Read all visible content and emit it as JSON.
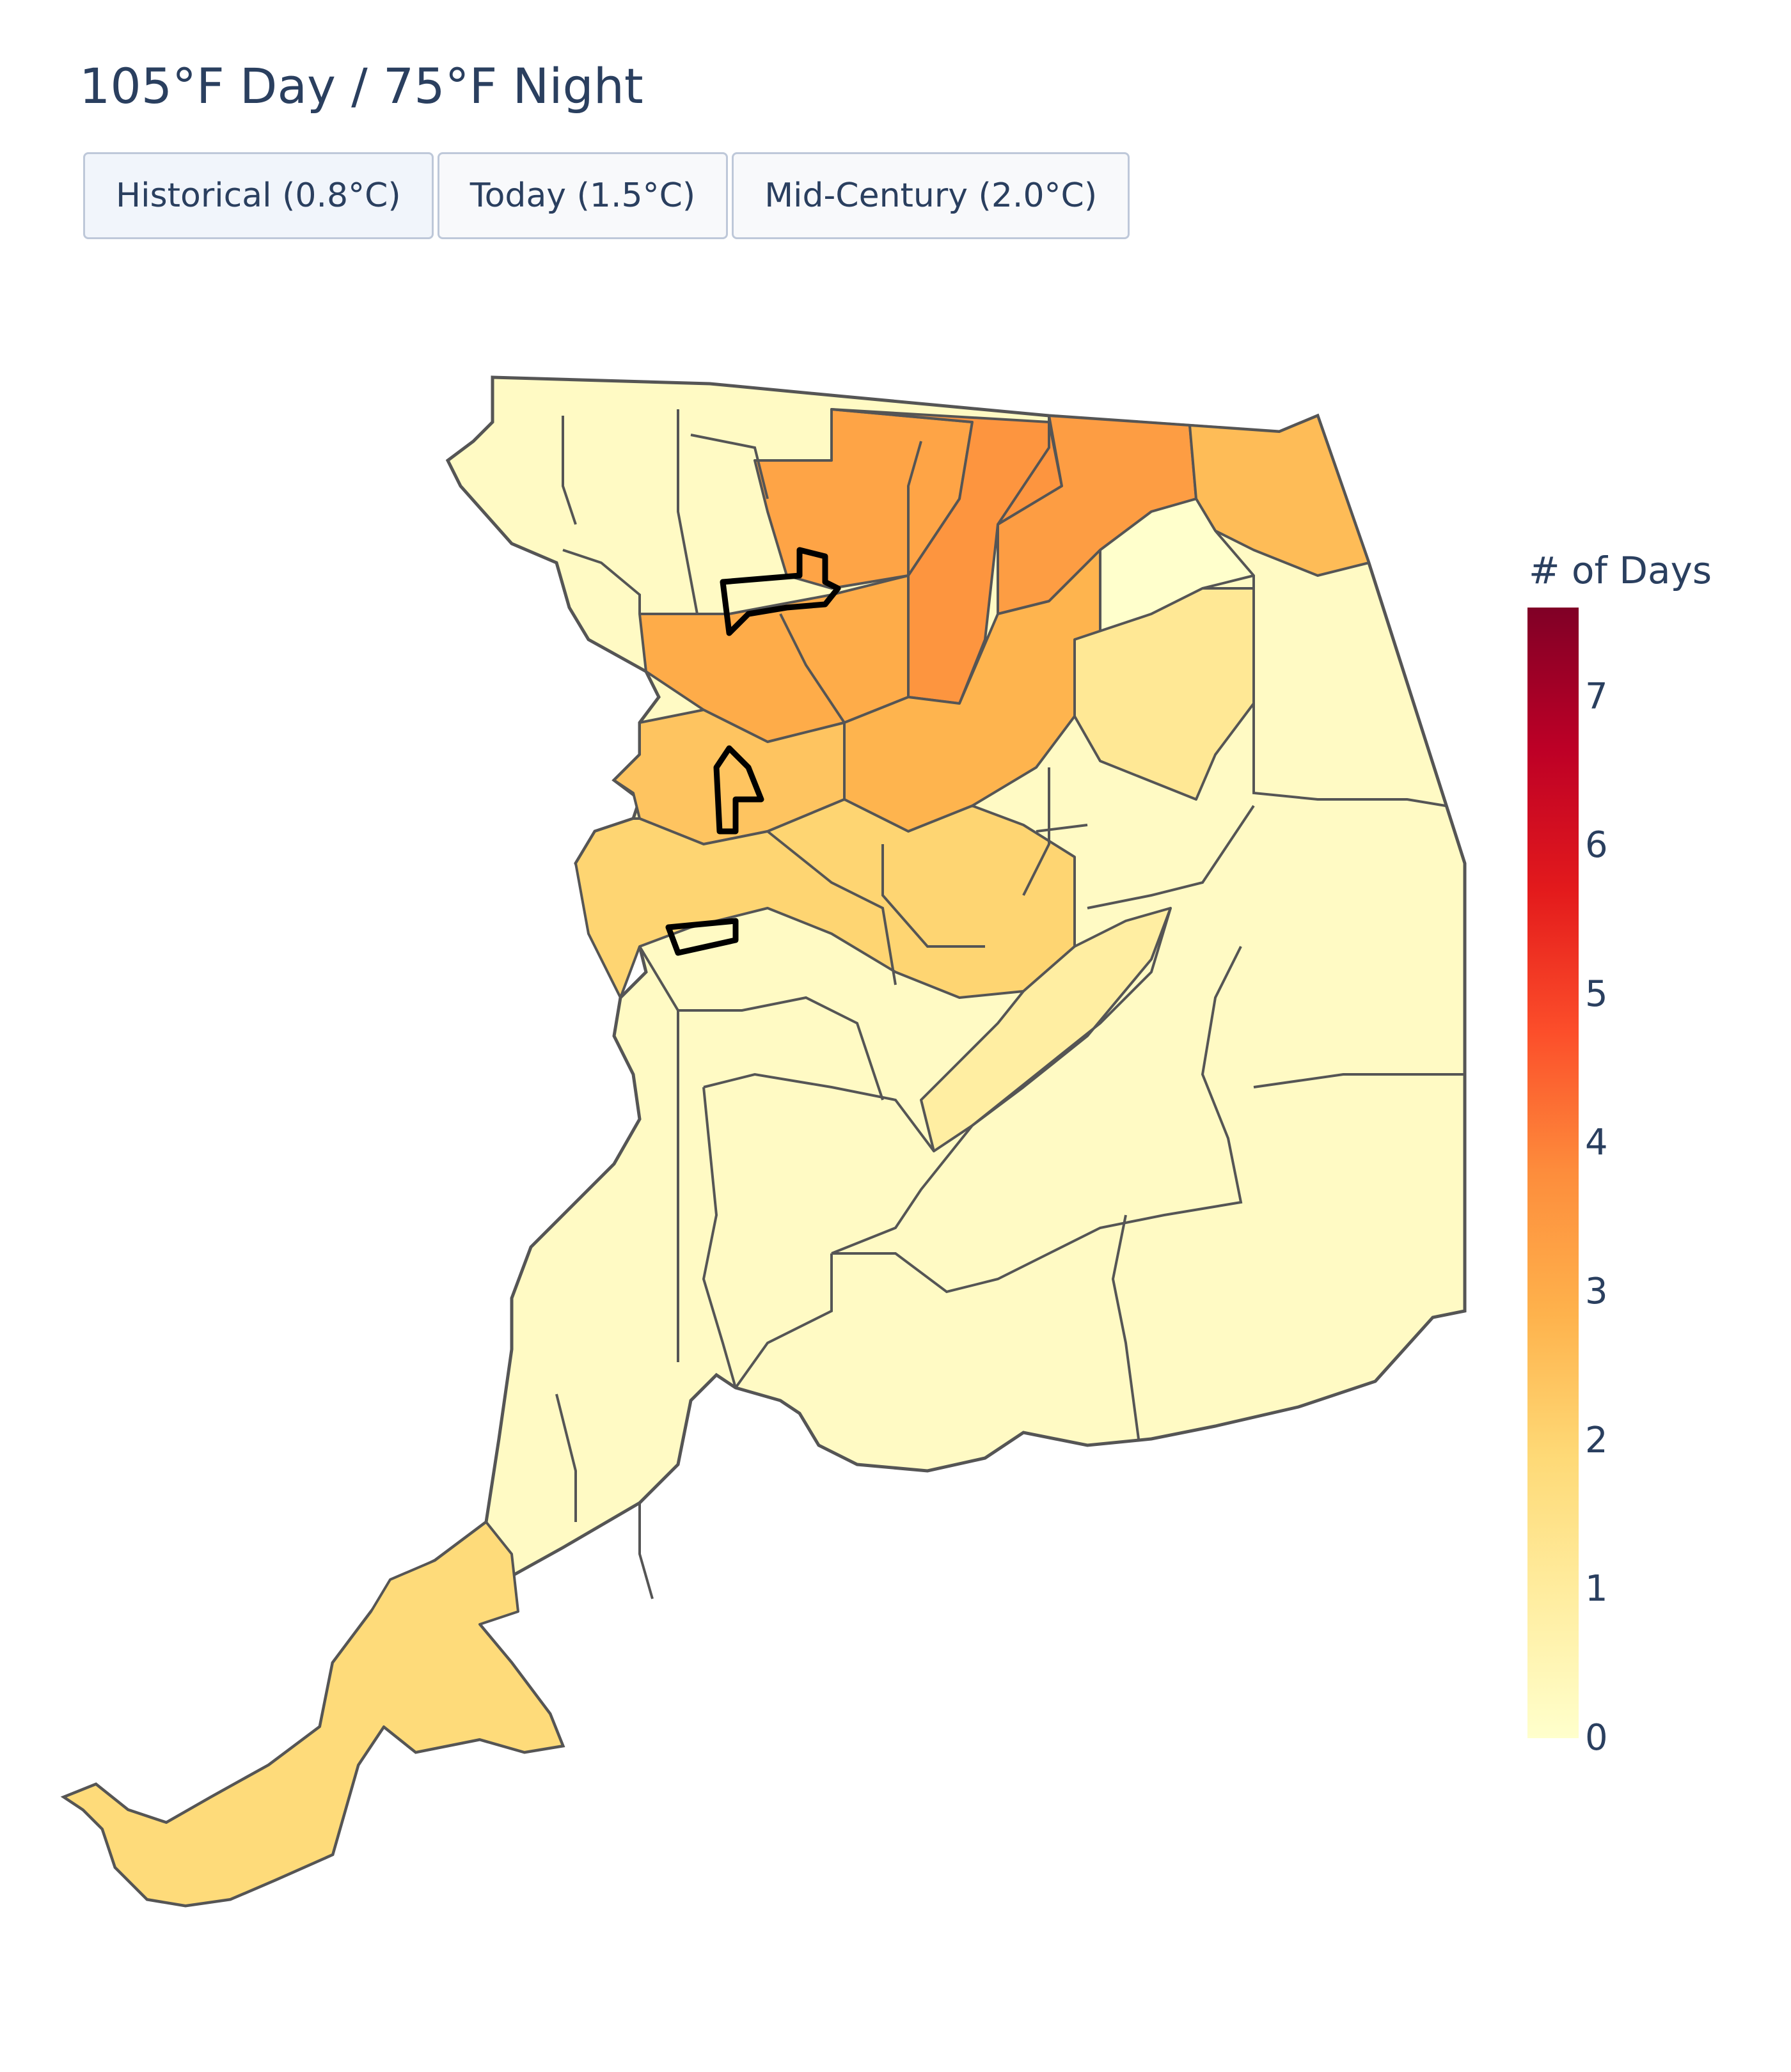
{
  "title": "105°F Day / 75°F Night",
  "buttons": [
    {
      "label": "Historical (0.8°C)",
      "active": true
    },
    {
      "label": "Today (1.5°C)",
      "active": false
    },
    {
      "label": "Mid-Century (2.0°C)",
      "active": false
    }
  ],
  "colorbar": {
    "title": "# of Days",
    "min": 0,
    "max": 7.6,
    "ticks": [
      "0",
      "1",
      "2",
      "3",
      "4",
      "5",
      "6",
      "7"
    ],
    "colorscale": [
      "#ffffcc",
      "#ffeda0",
      "#fed976",
      "#feb24c",
      "#fd8d3c",
      "#fc4e2a",
      "#e31a1c",
      "#bd0026",
      "#800026"
    ]
  },
  "map": {
    "border_color": "#555555",
    "highlight_color": "#000000",
    "regions": [
      {
        "id": "north-1",
        "value": 3.2
      },
      {
        "id": "north-2",
        "value": 3.6
      },
      {
        "id": "north-3",
        "value": 3.4
      },
      {
        "id": "northeast",
        "value": 2.6
      },
      {
        "id": "central-north",
        "value": 3.0
      },
      {
        "id": "central",
        "value": 2.8
      },
      {
        "id": "west-river",
        "value": 2.4
      },
      {
        "id": "central-south",
        "value": 2.0
      },
      {
        "id": "east-mid",
        "value": 1.2
      },
      {
        "id": "south-central",
        "value": 0.9
      },
      {
        "id": "delta",
        "value": 1.8
      },
      {
        "id": "rural-east",
        "value": 0.3
      },
      {
        "id": "rural-south",
        "value": 0.2
      }
    ]
  }
}
